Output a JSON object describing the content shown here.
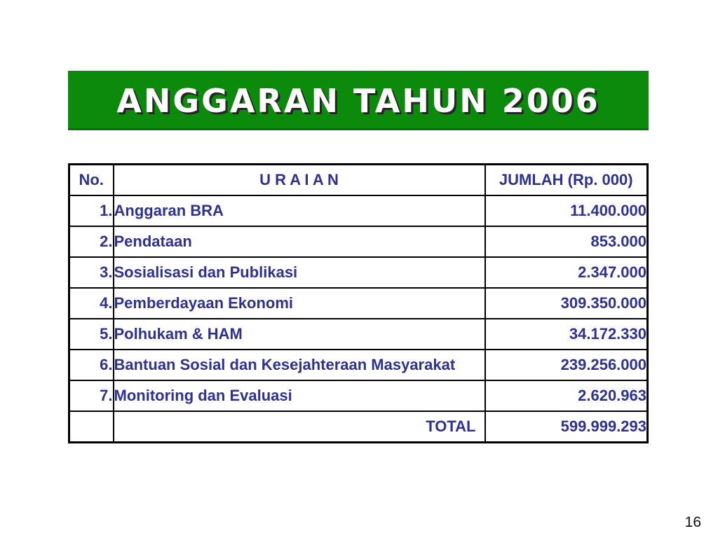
{
  "slide": {
    "title": "ANGGARAN TAHUN 2006",
    "page_number": "16",
    "colors": {
      "banner_green": "#0c8a0c",
      "table_text_navy": "#2e3192",
      "border_black": "#000000",
      "banner_text": "#ffffff"
    }
  },
  "table": {
    "headers": [
      "No.",
      "U R A I A N",
      "JUMLAH (Rp. 000)"
    ],
    "rows": [
      {
        "no": "1.",
        "uraian": "Anggaran BRA",
        "jumlah": "11.400.000"
      },
      {
        "no": "2.",
        "uraian": "Pendataan",
        "jumlah": "853.000"
      },
      {
        "no": "3.",
        "uraian": "Sosialisasi dan Publikasi",
        "jumlah": "2.347.000"
      },
      {
        "no": "4.",
        "uraian": "Pemberdayaan Ekonomi",
        "jumlah": "309.350.000"
      },
      {
        "no": "5.",
        "uraian": "Polhukam & HAM",
        "jumlah": "34.172.330"
      },
      {
        "no": "6.",
        "uraian": "Bantuan Sosial dan Kesejahteraan Masyarakat",
        "jumlah": "239.256.000"
      },
      {
        "no": "7.",
        "uraian": "Monitoring dan Evaluasi",
        "jumlah": "2.620.963"
      }
    ],
    "total": {
      "no": "",
      "label": "TOTAL",
      "jumlah": "599.999.293"
    }
  }
}
